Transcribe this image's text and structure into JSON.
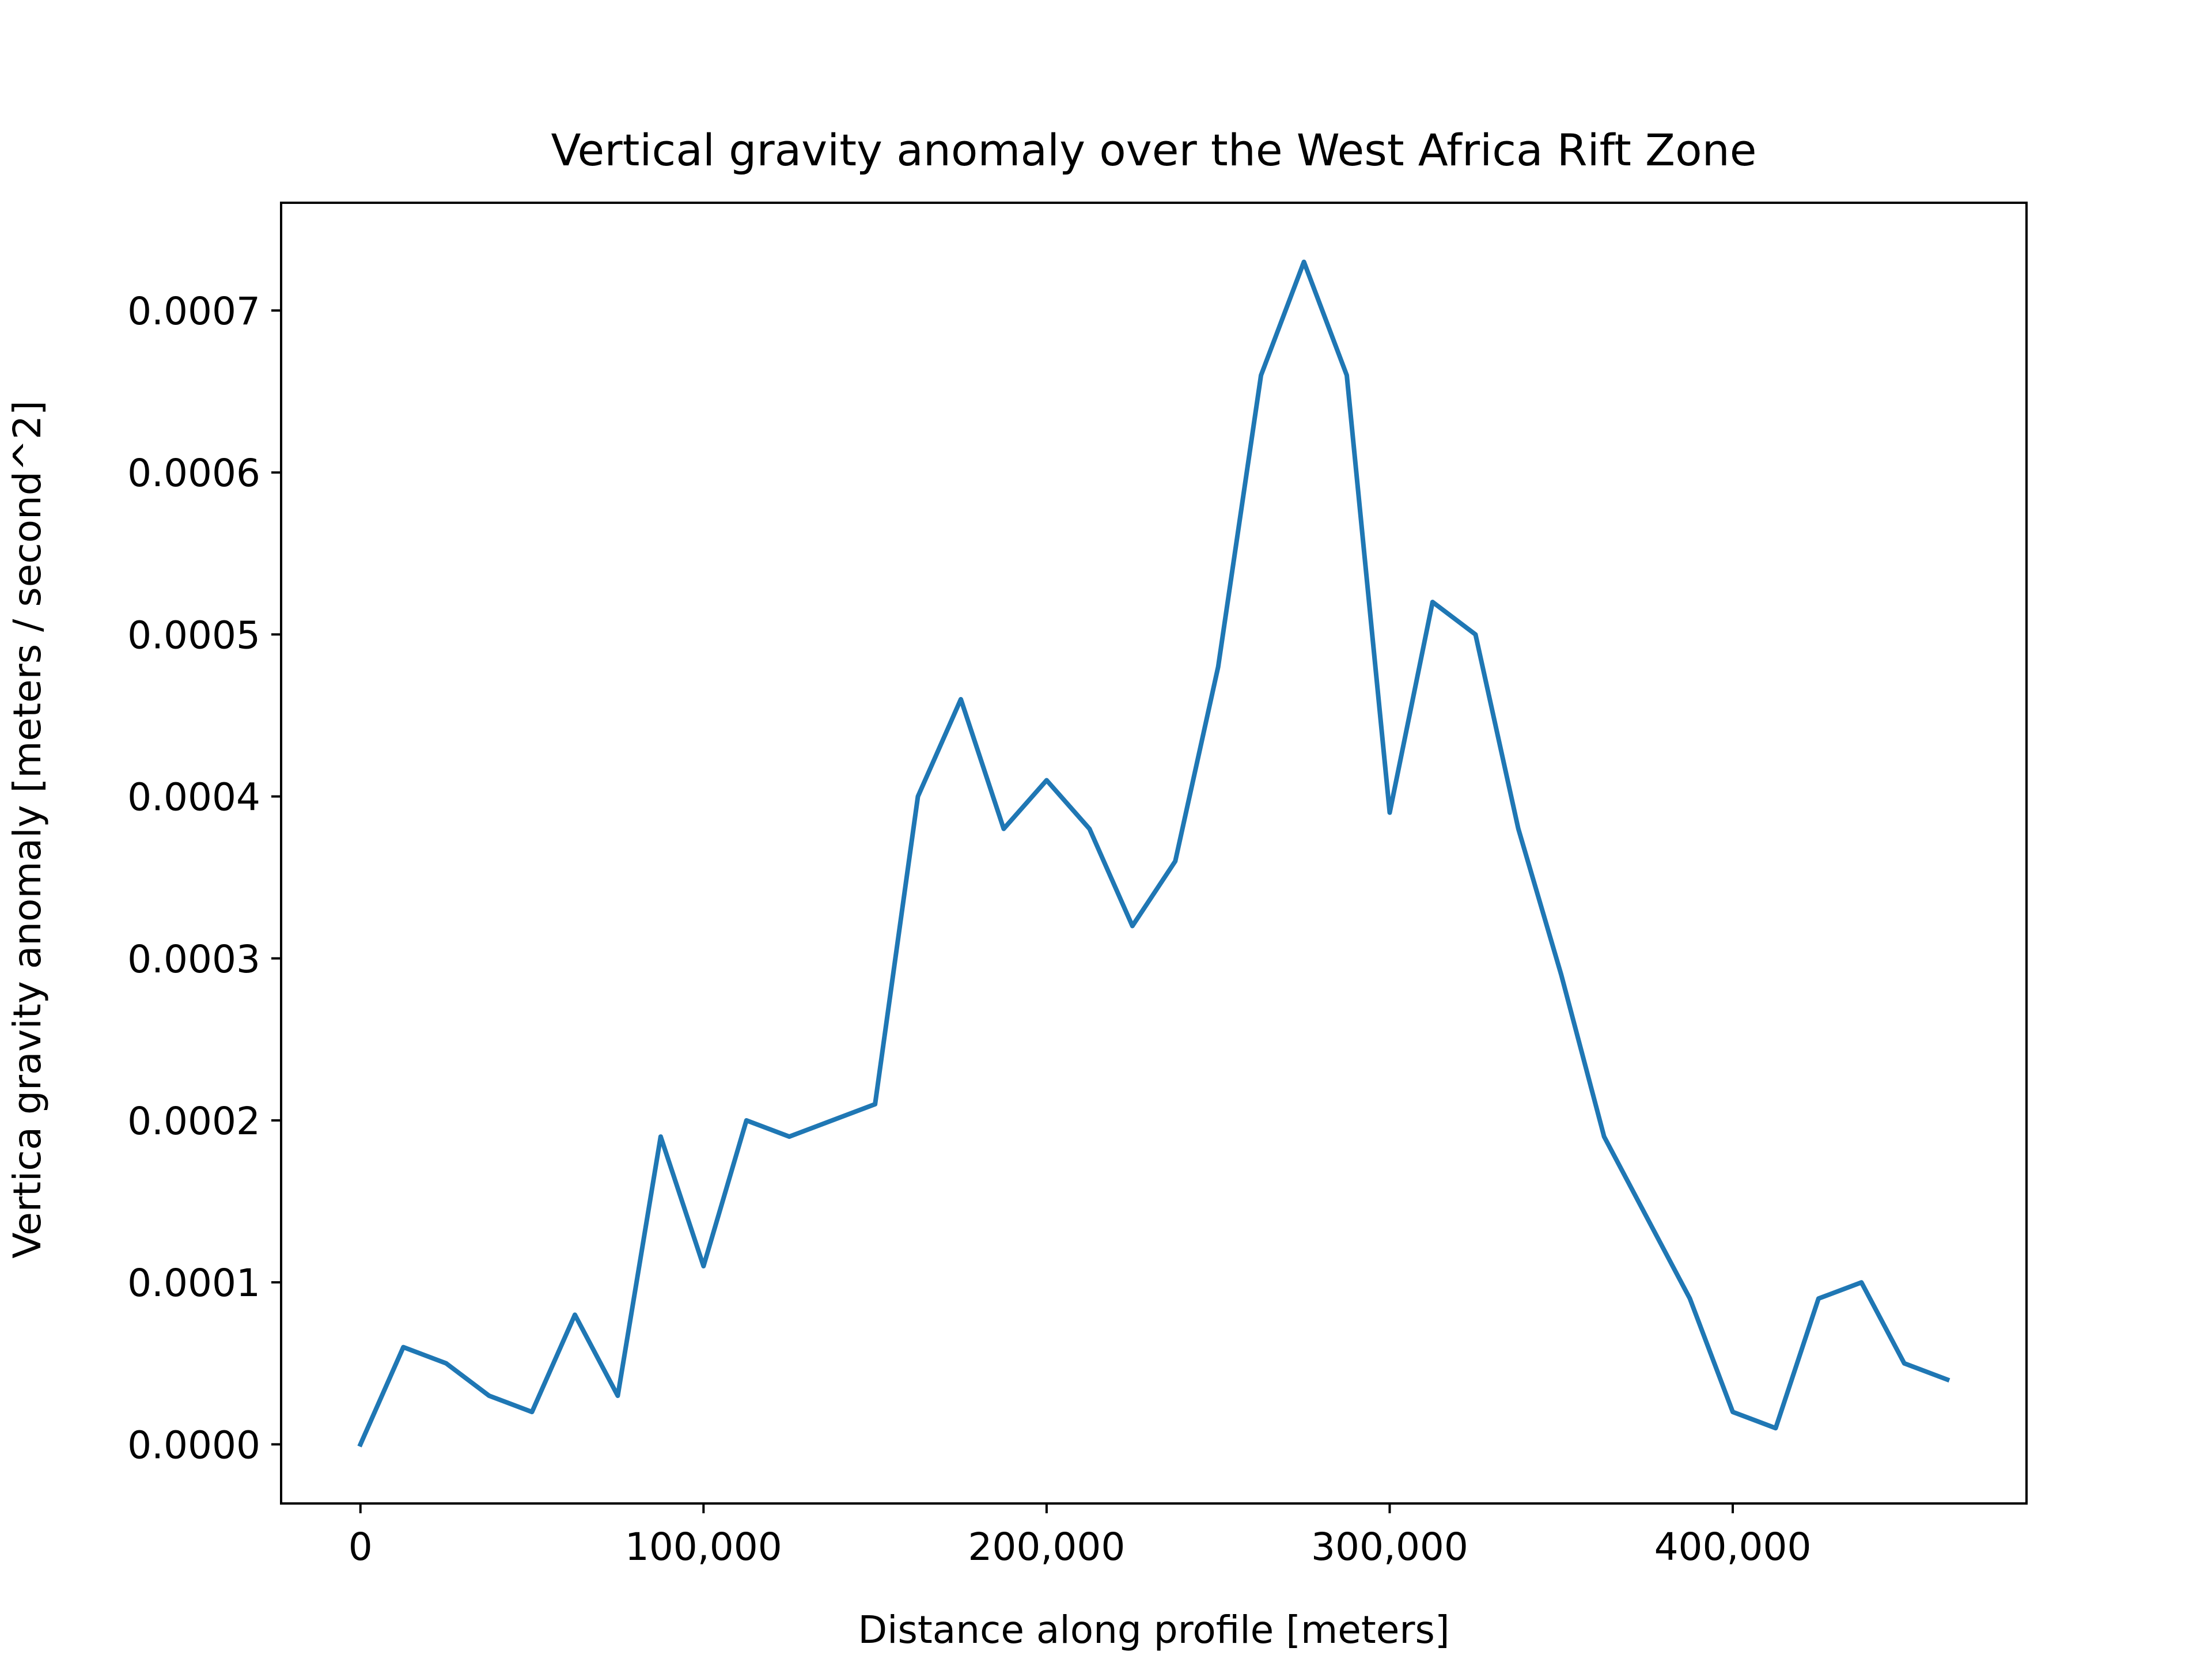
{
  "chart_data": {
    "type": "line",
    "title": "Vertical gravity anomaly over the West Africa Rift Zone",
    "xlabel": "Distance along profile [meters]",
    "ylabel": "Vertica gravity anomaly [meters / second^2]",
    "xlim": [
      -23125,
      485625
    ],
    "ylim": [
      -3.65e-05,
      0.0007665
    ],
    "xticks": [
      0,
      100000,
      200000,
      300000,
      400000
    ],
    "xtick_labels": [
      "0",
      "100,000",
      "200,000",
      "300,000",
      "400,000"
    ],
    "yticks": [
      0,
      0.0001,
      0.0002,
      0.0003,
      0.0004,
      0.0005,
      0.0006,
      0.0007
    ],
    "ytick_labels": [
      "0.0000",
      "0.0001",
      "0.0002",
      "0.0003",
      "0.0004",
      "0.0005",
      "0.0006",
      "0.0007"
    ],
    "grid": false,
    "series": [
      {
        "color": "#1f77b4",
        "x": [
          0,
          12500,
          25000,
          37500,
          50000,
          62500,
          75000,
          87500,
          100000,
          112500,
          125000,
          137500,
          150000,
          162500,
          175000,
          187500,
          200000,
          212500,
          225000,
          237500,
          250000,
          262500,
          275000,
          287500,
          300000,
          312500,
          325000,
          337500,
          350000,
          362500,
          375000,
          387500,
          400000,
          412500,
          425000,
          437500,
          450000,
          462500
        ],
        "y": [
          0,
          6e-05,
          5e-05,
          3e-05,
          2e-05,
          8e-05,
          3e-05,
          0.00019,
          0.00011,
          0.0002,
          0.00019,
          0.0002,
          0.00021,
          0.0004,
          0.00046,
          0.00038,
          0.00041,
          0.00038,
          0.00032,
          0.00036,
          0.00048,
          0.00066,
          0.00073,
          0.00066,
          0.00039,
          0.00052,
          0.0005,
          0.00038,
          0.00029,
          0.00019,
          0.00014,
          9e-05,
          2e-05,
          1e-05,
          9e-05,
          0.0001,
          5e-05,
          4e-05
        ]
      }
    ]
  }
}
